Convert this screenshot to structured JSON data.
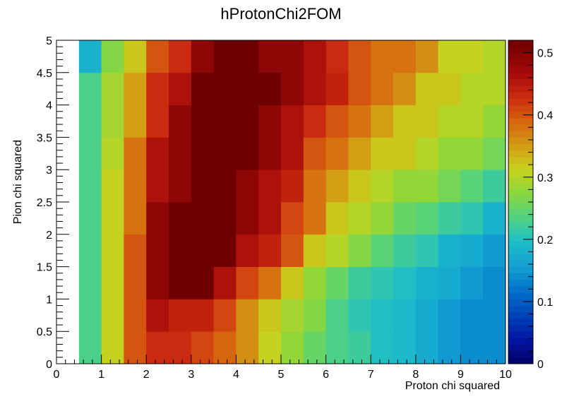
{
  "chart_data": {
    "type": "heatmap",
    "title": "hProtonChi2FOM",
    "xlabel": "Proton chi squared",
    "ylabel": "Pion chi squared",
    "xlim": [
      0,
      10
    ],
    "ylim": [
      0,
      5
    ],
    "zlim": [
      0,
      0.52
    ],
    "x_ticks": [
      "0",
      "1",
      "2",
      "3",
      "4",
      "5",
      "6",
      "7",
      "8",
      "9",
      "10"
    ],
    "y_ticks": [
      "0",
      "0.5",
      "1",
      "1.5",
      "2",
      "2.5",
      "3",
      "3.5",
      "4",
      "4.5",
      "5"
    ],
    "z_ticks": [
      "0",
      "0.1",
      "0.2",
      "0.3",
      "0.4",
      "0.5"
    ],
    "x_bin_edges": [
      0,
      0.5,
      1,
      1.5,
      2,
      2.5,
      3,
      3.5,
      4,
      4.5,
      5,
      5.5,
      6,
      6.5,
      7,
      7.5,
      8,
      8.5,
      9,
      9.5,
      10
    ],
    "y_bin_edges": [
      0,
      0.5,
      1,
      1.5,
      2,
      2.5,
      3,
      3.5,
      4,
      4.5,
      5
    ],
    "rows_bottom_to_top": [
      [
        null,
        0.23,
        0.31,
        0.4,
        0.43,
        0.43,
        0.41,
        0.39,
        0.36,
        0.31,
        0.28,
        0.25,
        0.23,
        0.22,
        0.2,
        0.19,
        0.17,
        0.15,
        0.14,
        0.14
      ],
      [
        null,
        0.23,
        0.31,
        0.4,
        0.46,
        0.44,
        0.44,
        0.41,
        0.36,
        0.32,
        0.29,
        0.27,
        0.23,
        0.21,
        0.2,
        0.19,
        0.17,
        0.15,
        0.14,
        0.14
      ],
      [
        null,
        0.23,
        0.31,
        0.4,
        0.49,
        0.52,
        0.52,
        0.46,
        0.41,
        0.38,
        0.32,
        0.28,
        0.25,
        0.22,
        0.21,
        0.2,
        0.18,
        0.17,
        0.15,
        0.14
      ],
      [
        null,
        0.23,
        0.31,
        0.4,
        0.49,
        0.52,
        0.52,
        0.52,
        0.46,
        0.44,
        0.4,
        0.32,
        0.3,
        0.27,
        0.24,
        0.22,
        0.21,
        0.18,
        0.17,
        0.15
      ],
      [
        null,
        0.23,
        0.31,
        0.38,
        0.49,
        0.52,
        0.52,
        0.52,
        0.49,
        0.46,
        0.41,
        0.38,
        0.32,
        0.3,
        0.28,
        0.25,
        0.24,
        0.22,
        0.21,
        0.18
      ],
      [
        null,
        0.23,
        0.31,
        0.38,
        0.46,
        0.49,
        0.52,
        0.52,
        0.49,
        0.46,
        0.44,
        0.38,
        0.35,
        0.32,
        0.3,
        0.28,
        0.28,
        0.26,
        0.24,
        0.22
      ],
      [
        null,
        0.23,
        0.3,
        0.38,
        0.46,
        0.49,
        0.52,
        0.52,
        0.52,
        0.49,
        0.46,
        0.4,
        0.38,
        0.35,
        0.32,
        0.32,
        0.3,
        0.28,
        0.28,
        0.26
      ],
      [
        null,
        0.23,
        0.29,
        0.35,
        0.43,
        0.49,
        0.52,
        0.52,
        0.52,
        0.49,
        0.46,
        0.43,
        0.4,
        0.38,
        0.35,
        0.32,
        0.32,
        0.3,
        0.3,
        0.28
      ],
      [
        null,
        0.23,
        0.29,
        0.35,
        0.43,
        0.46,
        0.52,
        0.52,
        0.52,
        0.52,
        0.49,
        0.46,
        0.44,
        0.4,
        0.38,
        0.36,
        0.32,
        0.32,
        0.3,
        0.3
      ],
      [
        null,
        0.18,
        0.27,
        0.32,
        0.4,
        0.43,
        0.49,
        0.52,
        0.52,
        0.49,
        0.49,
        0.46,
        0.43,
        0.4,
        0.38,
        0.38,
        0.36,
        0.31,
        0.31,
        0.3
      ]
    ]
  }
}
